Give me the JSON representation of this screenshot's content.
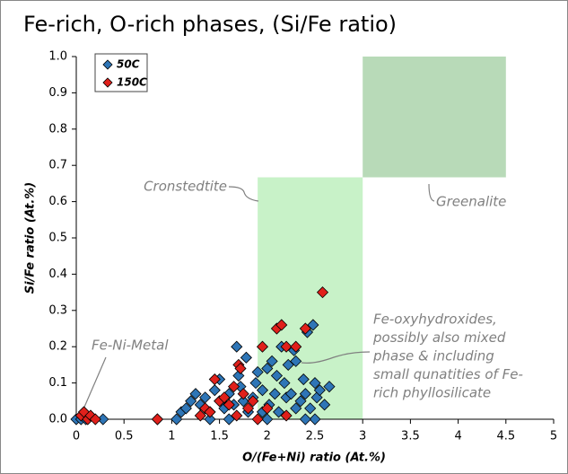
{
  "chart_data": {
    "type": "scatter",
    "title": "Fe-rich, O-rich phases, (Si/Fe ratio)",
    "x_label": "O/(Fe+Ni) ratio (At.%)",
    "y_label": "Si/Fe ratio (At.%)",
    "xlim": [
      0,
      5
    ],
    "ylim": [
      0,
      1
    ],
    "xticks": [
      0,
      0.5,
      1,
      1.5,
      2,
      2.5,
      3,
      3.5,
      4,
      4.5,
      5
    ],
    "yticks": [
      {
        "value": 0,
        "label": "0.0"
      },
      0.1,
      0.2,
      0.3,
      0.4,
      0.5,
      0.6,
      0.7,
      0.8,
      0.9,
      {
        "value": 1,
        "label": "1.0"
      }
    ],
    "grid": false,
    "legend": "upper left",
    "regions": [
      {
        "xrange": [
          1.9,
          3.0
        ],
        "yrange": [
          0,
          0.667
        ],
        "color": "#c8f2c8"
      },
      {
        "xrange": [
          3.0,
          4.5
        ],
        "yrange": [
          0.667,
          1.0
        ],
        "color": "#b8dab8"
      }
    ],
    "annotations": {
      "cronstedtite": "Cronstedtite",
      "greenalite": "Greenalite",
      "fe_ni_metal": "Fe-Ni-Metal",
      "fe_oxy": [
        "Fe-oxyhydroxides,",
        "possibly also mixed",
        "phase & including",
        "small qunatities of Fe-",
        "rich phyllosilicate"
      ]
    },
    "series": [
      {
        "name": "50C",
        "color": "#2e75b6",
        "x": [
          0.0,
          0.05,
          0.1,
          0.28,
          0.85,
          1.05,
          1.1,
          1.15,
          1.2,
          1.25,
          1.3,
          1.35,
          1.4,
          1.45,
          1.5,
          1.52,
          1.55,
          1.6,
          1.65,
          1.68,
          1.7,
          1.72,
          1.75,
          1.78,
          1.8,
          1.85,
          1.88,
          1.9,
          1.95,
          2.0,
          2.02,
          2.05,
          2.08,
          2.1,
          2.12,
          2.15,
          2.18,
          2.2,
          2.22,
          2.25,
          2.28,
          2.3,
          2.35,
          2.38,
          2.4,
          2.42,
          2.45,
          2.48,
          2.5,
          2.52,
          2.55,
          2.6,
          2.65,
          2.3,
          2.5,
          1.4,
          1.6,
          2.0,
          2.4,
          1.95
        ],
        "values": [
          0.0,
          0.0,
          0.0,
          0.0,
          0.0,
          0.0,
          0.02,
          0.03,
          0.05,
          0.07,
          0.04,
          0.06,
          0.02,
          0.08,
          0.11,
          0.05,
          0.03,
          0.07,
          0.04,
          0.2,
          0.12,
          0.09,
          0.05,
          0.17,
          0.02,
          0.06,
          0.1,
          0.13,
          0.08,
          0.14,
          0.04,
          0.16,
          0.07,
          0.12,
          0.02,
          0.2,
          0.1,
          0.06,
          0.15,
          0.07,
          0.19,
          0.03,
          0.05,
          0.11,
          0.07,
          0.24,
          0.03,
          0.26,
          0.1,
          0.06,
          0.08,
          0.04,
          0.09,
          0.16,
          0.0,
          0.0,
          0.0,
          0.0,
          0.0,
          0.02
        ]
      },
      {
        "name": "150C",
        "color": "#e0201b",
        "x": [
          0.05,
          0.08,
          0.12,
          0.15,
          0.2,
          0.85,
          1.3,
          1.35,
          1.4,
          1.45,
          1.5,
          1.55,
          1.6,
          1.65,
          1.7,
          1.72,
          1.75,
          1.8,
          1.85,
          1.95,
          2.1,
          2.15,
          2.2,
          2.3,
          2.4,
          2.58,
          2.0,
          1.68,
          1.9,
          2.2
        ],
        "values": [
          0.01,
          0.02,
          0.0,
          0.01,
          0.0,
          0.0,
          0.01,
          0.03,
          0.02,
          0.11,
          0.05,
          0.06,
          0.04,
          0.09,
          0.15,
          0.14,
          0.07,
          0.03,
          0.05,
          0.2,
          0.25,
          0.26,
          0.2,
          0.2,
          0.25,
          0.35,
          0.03,
          0.01,
          0.0,
          0.01
        ]
      }
    ]
  }
}
